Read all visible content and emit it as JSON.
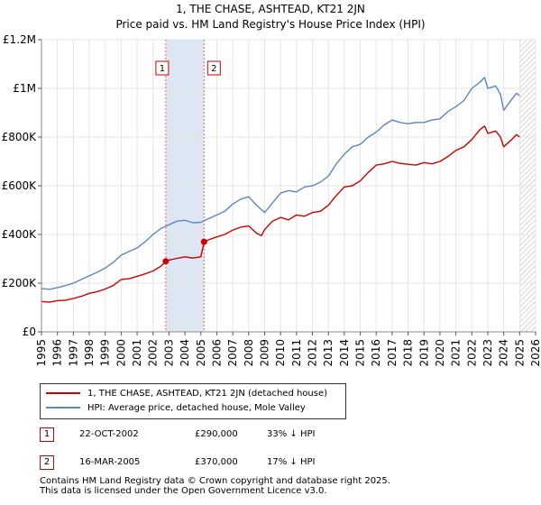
{
  "title": {
    "line1": "1, THE CHASE, ASHTEAD, KT21 2JN",
    "line2": "Price paid vs. HM Land Registry's House Price Index (HPI)"
  },
  "chart_data": {
    "type": "line",
    "title": "1, THE CHASE, ASHTEAD, KT21 2JN — Price paid vs. HM Land Registry's House Price Index (HPI)",
    "xlabel": "",
    "ylabel": "",
    "xlim": [
      1995,
      2026
    ],
    "ylim": [
      0,
      1200000
    ],
    "x_ticks": [
      "1995",
      "1996",
      "1997",
      "1998",
      "1999",
      "2000",
      "2001",
      "2002",
      "2003",
      "2004",
      "2005",
      "2006",
      "2007",
      "2008",
      "2009",
      "2010",
      "2011",
      "2012",
      "2013",
      "2014",
      "2015",
      "2016",
      "2017",
      "2018",
      "2019",
      "2020",
      "2021",
      "2022",
      "2023",
      "2024",
      "2025",
      "2026"
    ],
    "y_ticks": [
      {
        "value": 0,
        "label": "£0"
      },
      {
        "value": 200000,
        "label": "£200K"
      },
      {
        "value": 400000,
        "label": "£400K"
      },
      {
        "value": 600000,
        "label": "£600K"
      },
      {
        "value": 800000,
        "label": "£800K"
      },
      {
        "value": 1000000,
        "label": "£1M"
      },
      {
        "value": 1200000,
        "label": "£1.2M"
      }
    ],
    "grid": true,
    "shaded_range": [
      2002.8,
      2005.2
    ],
    "forecast_from": 2025.0,
    "series": [
      {
        "name": "1, THE CHASE, ASHTEAD, KT21 2JN (detached house)",
        "color": "#cc0000",
        "x": [
          1995.0,
          1995.5,
          1996.0,
          1996.5,
          1997.0,
          1997.5,
          1998.0,
          1998.5,
          1999.0,
          1999.5,
          2000.0,
          2000.5,
          2001.0,
          2001.5,
          2002.0,
          2002.5,
          2002.8,
          2003.0,
          2003.5,
          2004.0,
          2004.5,
          2005.0,
          2005.2,
          2005.5,
          2006.0,
          2006.5,
          2007.0,
          2007.5,
          2008.0,
          2008.5,
          2008.8,
          2009.0,
          2009.5,
          2010.0,
          2010.5,
          2011.0,
          2011.5,
          2012.0,
          2012.5,
          2013.0,
          2013.5,
          2014.0,
          2014.5,
          2015.0,
          2015.5,
          2016.0,
          2016.5,
          2017.0,
          2017.5,
          2018.0,
          2018.5,
          2019.0,
          2019.5,
          2020.0,
          2020.5,
          2021.0,
          2021.5,
          2022.0,
          2022.5,
          2022.8,
          2023.0,
          2023.5,
          2023.8,
          2024.0,
          2024.5,
          2024.8,
          2025.0
        ],
        "values": [
          125000,
          122000,
          128000,
          130000,
          137000,
          146000,
          158000,
          165000,
          176000,
          190000,
          215000,
          218000,
          228000,
          238000,
          250000,
          270000,
          290000,
          295000,
          302000,
          308000,
          303000,
          308000,
          370000,
          378000,
          390000,
          400000,
          418000,
          430000,
          435000,
          405000,
          395000,
          420000,
          455000,
          470000,
          460000,
          480000,
          475000,
          490000,
          495000,
          520000,
          560000,
          595000,
          600000,
          620000,
          655000,
          685000,
          690000,
          700000,
          692000,
          688000,
          685000,
          695000,
          690000,
          700000,
          720000,
          745000,
          760000,
          790000,
          830000,
          845000,
          815000,
          825000,
          800000,
          760000,
          790000,
          810000,
          800000
        ]
      },
      {
        "name": "HPI: Average price, detached house, Mole Valley",
        "color": "#5b87c0",
        "x": [
          1995.0,
          1995.5,
          1996.0,
          1996.5,
          1997.0,
          1997.5,
          1998.0,
          1998.5,
          1999.0,
          1999.5,
          2000.0,
          2000.5,
          2001.0,
          2001.5,
          2002.0,
          2002.5,
          2003.0,
          2003.5,
          2004.0,
          2004.5,
          2005.0,
          2005.5,
          2006.0,
          2006.5,
          2007.0,
          2007.5,
          2008.0,
          2008.5,
          2009.0,
          2009.5,
          2010.0,
          2010.5,
          2011.0,
          2011.5,
          2012.0,
          2012.5,
          2013.0,
          2013.5,
          2014.0,
          2014.5,
          2015.0,
          2015.5,
          2016.0,
          2016.5,
          2017.0,
          2017.5,
          2018.0,
          2018.5,
          2019.0,
          2019.5,
          2020.0,
          2020.5,
          2021.0,
          2021.5,
          2022.0,
          2022.5,
          2022.8,
          2023.0,
          2023.5,
          2023.8,
          2024.0,
          2024.5,
          2024.8,
          2025.0
        ],
        "values": [
          178000,
          175000,
          182000,
          190000,
          200000,
          215000,
          230000,
          245000,
          262000,
          285000,
          315000,
          330000,
          345000,
          370000,
          400000,
          425000,
          440000,
          455000,
          458000,
          448000,
          450000,
          465000,
          480000,
          495000,
          525000,
          545000,
          555000,
          520000,
          490000,
          530000,
          570000,
          580000,
          575000,
          595000,
          600000,
          615000,
          640000,
          690000,
          730000,
          760000,
          770000,
          800000,
          820000,
          850000,
          870000,
          860000,
          855000,
          860000,
          860000,
          870000,
          875000,
          905000,
          925000,
          950000,
          1000000,
          1025000,
          1045000,
          1000000,
          1010000,
          975000,
          910000,
          955000,
          980000,
          970000
        ]
      }
    ],
    "transactions": [
      {
        "num": "1",
        "x": 2002.8,
        "price": 290000,
        "date": "22-OCT-2002",
        "price_label": "£290,000",
        "hpi": "33% ↓ HPI"
      },
      {
        "num": "2",
        "x": 2005.2,
        "price": 370000,
        "date": "16-MAR-2005",
        "price_label": "£370,000",
        "hpi": "17% ↓ HPI"
      }
    ]
  },
  "legend": {
    "property_label": "1, THE CHASE, ASHTEAD, KT21 2JN (detached house)",
    "hpi_label": "HPI: Average price, detached house, Mole Valley",
    "property_color": "#cc0000",
    "hpi_color": "#5b87c0"
  },
  "footer": {
    "line1": "Contains HM Land Registry data © Crown copyright and database right 2025.",
    "line2": "This data is licensed under the Open Government Licence v3.0."
  }
}
